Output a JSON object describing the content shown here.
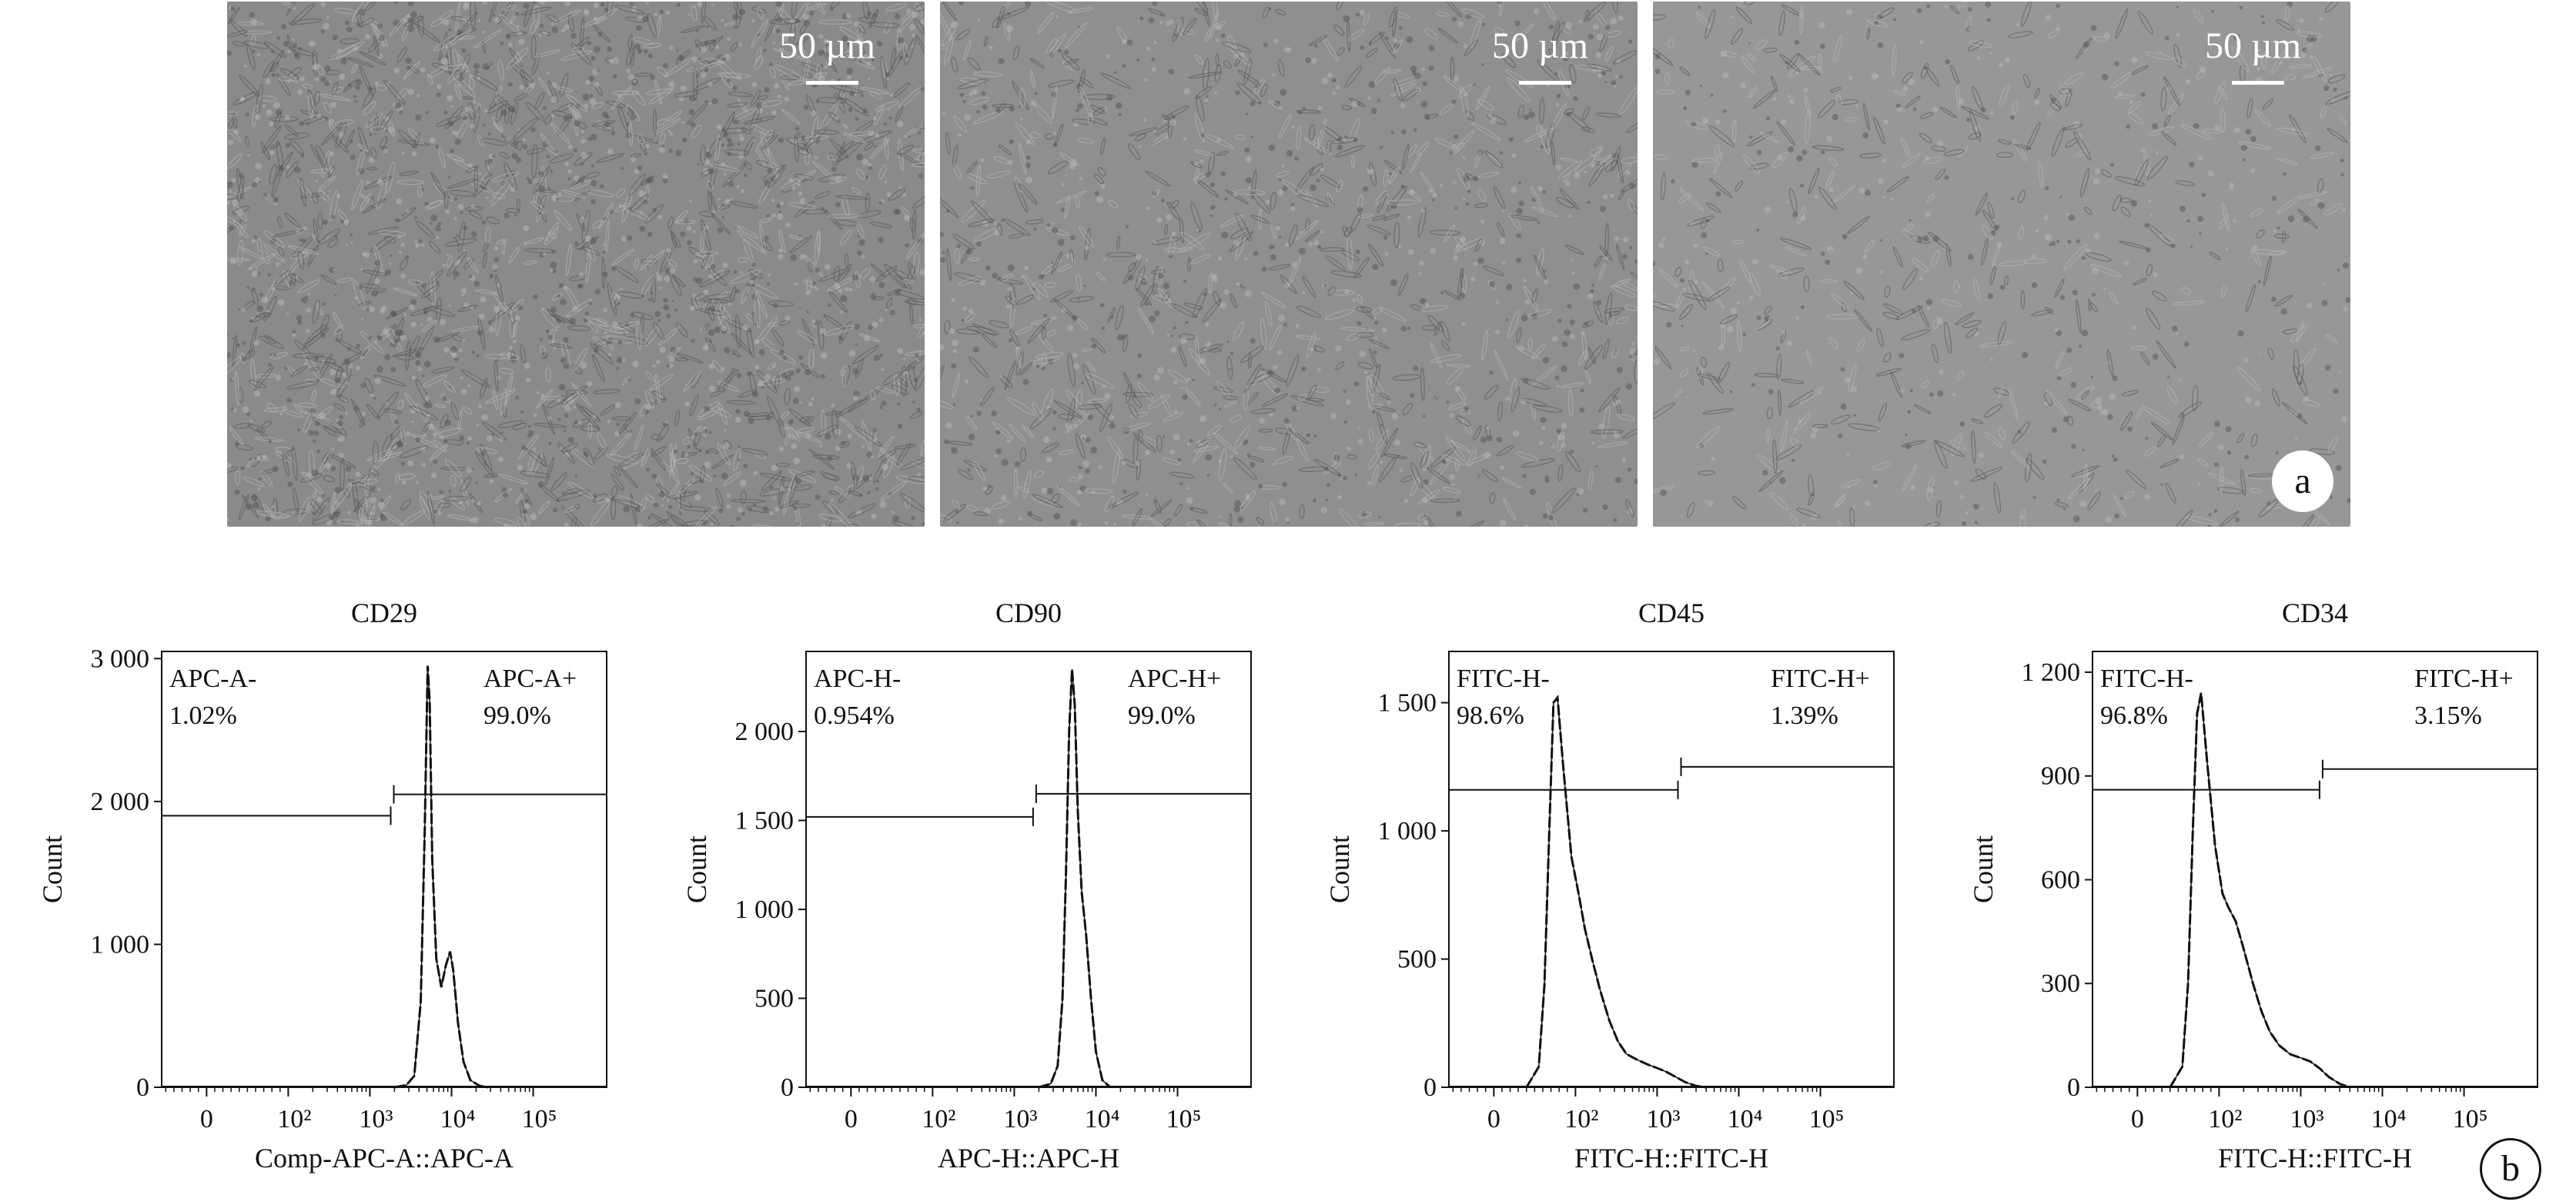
{
  "micrographs": [
    {
      "scale_label": "50 µm"
    },
    {
      "scale_label": "50 µm"
    },
    {
      "scale_label": "50 µm"
    }
  ],
  "panel_labels": {
    "a": "a",
    "b": "b"
  },
  "colors": {
    "line": "#111111",
    "micro_bg_1": "#8a8a8a",
    "micro_bg_2": "#8f8f8f",
    "micro_bg_3": "#979797",
    "cell": "#555555",
    "cell_light": "#b8b8b8"
  },
  "chart_data": [
    {
      "type": "histogram",
      "title": "CD29",
      "xlabel": "Comp-APC-A::APC-A",
      "ylabel": "Count",
      "x_ticks": [
        "0",
        "10²",
        "10³",
        "10⁴",
        "10⁵"
      ],
      "x_tick_values": [
        0,
        100,
        1000,
        10000,
        100000
      ],
      "x_scale": "biexponential",
      "ylim": [
        0,
        3050
      ],
      "y_ticks": [
        0,
        1000,
        2000,
        3000
      ],
      "y_tick_labels": [
        "0",
        "1 000",
        "2 000",
        "3 000"
      ],
      "gates": [
        {
          "name": "APC-A-",
          "percent": "1.02%",
          "range": [
            null,
            1800
          ],
          "level": 1900
        },
        {
          "name": "APC-A+",
          "percent": "99.0%",
          "range": [
            1800,
            null
          ],
          "level": 2050
        }
      ],
      "histogram": [
        [
          2000,
          0
        ],
        [
          2800,
          15
        ],
        [
          3500,
          80
        ],
        [
          4200,
          600
        ],
        [
          4700,
          1800
        ],
        [
          5100,
          2950
        ],
        [
          5400,
          2700
        ],
        [
          5800,
          1600
        ],
        [
          6500,
          900
        ],
        [
          7500,
          700
        ],
        [
          8500,
          850
        ],
        [
          9600,
          950
        ],
        [
          10500,
          820
        ],
        [
          12000,
          450
        ],
        [
          14000,
          180
        ],
        [
          17000,
          50
        ],
        [
          22000,
          10
        ],
        [
          28000,
          0
        ]
      ]
    },
    {
      "type": "histogram",
      "title": "CD90",
      "xlabel": "APC-H::APC-H",
      "ylabel": "Count",
      "x_ticks": [
        "0",
        "10²",
        "10³",
        "10⁴",
        "10⁵"
      ],
      "x_tick_values": [
        0,
        100,
        1000,
        10000,
        100000
      ],
      "x_scale": "biexponential",
      "ylim": [
        0,
        2450
      ],
      "y_ticks": [
        0,
        500,
        1000,
        1500,
        2000
      ],
      "y_tick_labels": [
        "0",
        "500",
        "1 000",
        "1 500",
        "2 000"
      ],
      "gates": [
        {
          "name": "APC-H-",
          "percent": "0.954%",
          "range": [
            null,
            1700
          ],
          "level": 1520
        },
        {
          "name": "APC-H+",
          "percent": "99.0%",
          "range": [
            1700,
            null
          ],
          "level": 1650
        }
      ],
      "histogram": [
        [
          2000,
          0
        ],
        [
          2800,
          20
        ],
        [
          3400,
          120
        ],
        [
          3900,
          500
        ],
        [
          4300,
          1200
        ],
        [
          4700,
          2000
        ],
        [
          5100,
          2350
        ],
        [
          5500,
          2150
        ],
        [
          6000,
          1550
        ],
        [
          6700,
          1100
        ],
        [
          7600,
          850
        ],
        [
          8700,
          500
        ],
        [
          10000,
          200
        ],
        [
          12000,
          40
        ],
        [
          15000,
          0
        ]
      ]
    },
    {
      "type": "histogram",
      "title": "CD45",
      "xlabel": "FITC-H::FITC-H",
      "ylabel": "Count",
      "x_ticks": [
        "0",
        "10²",
        "10³",
        "10⁴",
        "10⁵"
      ],
      "x_tick_values": [
        0,
        100,
        1000,
        10000,
        100000
      ],
      "x_scale": "biexponential",
      "ylim": [
        0,
        1700
      ],
      "y_ticks": [
        0,
        500,
        1000,
        1500
      ],
      "y_tick_labels": [
        "0",
        "500",
        "1 000",
        "1 500"
      ],
      "gates": [
        {
          "name": "FITC-H-",
          "percent": "98.6%",
          "range": [
            null,
            1800
          ],
          "level": 1160
        },
        {
          "name": "FITC-H+",
          "percent": "1.39%",
          "range": [
            1800,
            null
          ],
          "level": 1250
        }
      ],
      "histogram": [
        [
          40,
          0
        ],
        [
          55,
          80
        ],
        [
          62,
          400
        ],
        [
          68,
          1000
        ],
        [
          73,
          1500
        ],
        [
          78,
          1520
        ],
        [
          85,
          1250
        ],
        [
          95,
          900
        ],
        [
          110,
          750
        ],
        [
          130,
          620
        ],
        [
          160,
          500
        ],
        [
          200,
          380
        ],
        [
          260,
          260
        ],
        [
          330,
          180
        ],
        [
          420,
          130
        ],
        [
          550,
          110
        ],
        [
          750,
          90
        ],
        [
          1000,
          75
        ],
        [
          1300,
          60
        ],
        [
          1700,
          40
        ],
        [
          2200,
          20
        ],
        [
          3000,
          5
        ],
        [
          4000,
          0
        ]
      ]
    },
    {
      "type": "histogram",
      "title": "CD34",
      "xlabel": "FITC-H::FITC-H",
      "ylabel": "Count",
      "x_ticks": [
        "0",
        "10²",
        "10³",
        "10⁴",
        "10⁵"
      ],
      "x_tick_values": [
        0,
        100,
        1000,
        10000,
        100000
      ],
      "x_scale": "biexponential",
      "ylim": [
        0,
        1260
      ],
      "y_ticks": [
        0,
        300,
        600,
        900,
        1200
      ],
      "y_tick_labels": [
        "0",
        "300",
        "600",
        "900",
        "1 200"
      ],
      "gates": [
        {
          "name": "FITC-H-",
          "percent": "96.8%",
          "range": [
            null,
            1700
          ],
          "level": 860
        },
        {
          "name": "FITC-H+",
          "percent": "3.15%",
          "range": [
            1700,
            null
          ],
          "level": 920
        }
      ],
      "histogram": [
        [
          40,
          0
        ],
        [
          55,
          60
        ],
        [
          62,
          300
        ],
        [
          68,
          750
        ],
        [
          73,
          1080
        ],
        [
          78,
          1140
        ],
        [
          85,
          950
        ],
        [
          95,
          700
        ],
        [
          110,
          560
        ],
        [
          130,
          520
        ],
        [
          160,
          480
        ],
        [
          200,
          400
        ],
        [
          260,
          300
        ],
        [
          330,
          220
        ],
        [
          420,
          160
        ],
        [
          550,
          120
        ],
        [
          750,
          95
        ],
        [
          1000,
          85
        ],
        [
          1300,
          75
        ],
        [
          1700,
          55
        ],
        [
          2200,
          30
        ],
        [
          3000,
          10
        ],
        [
          4000,
          0
        ]
      ]
    }
  ]
}
